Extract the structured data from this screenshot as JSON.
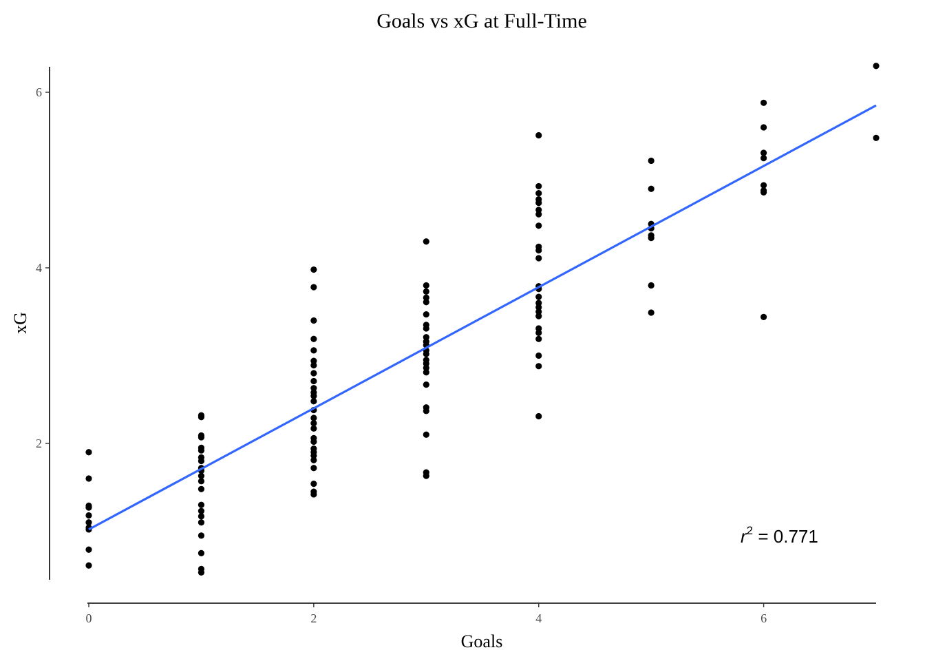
{
  "chart_data": {
    "type": "scatter",
    "title": "Goals vs xG at Full-Time",
    "xlabel": "Goals",
    "ylabel": "xG",
    "xlim": [
      -0.05,
      7
    ],
    "ylim": [
      0.5,
      6.3
    ],
    "x_ticks": [
      0,
      2,
      4,
      6
    ],
    "y_ticks": [
      2,
      4,
      6
    ],
    "grid": false,
    "annotation": {
      "prefix": "r",
      "superscript": "2",
      "suffix": " = 0.771"
    },
    "fit_line": {
      "color": "#3366ff",
      "x": [
        0,
        7
      ],
      "y": [
        1.02,
        5.85
      ]
    },
    "points": [
      {
        "x": 0,
        "y": 1.9
      },
      {
        "x": 0,
        "y": 1.6
      },
      {
        "x": 0,
        "y": 1.29
      },
      {
        "x": 0,
        "y": 1.27
      },
      {
        "x": 0,
        "y": 1.18
      },
      {
        "x": 0,
        "y": 1.1
      },
      {
        "x": 0,
        "y": 1.04
      },
      {
        "x": 0,
        "y": 1.02
      },
      {
        "x": 0,
        "y": 0.79
      },
      {
        "x": 0,
        "y": 0.61
      },
      {
        "x": 1,
        "y": 2.32
      },
      {
        "x": 1,
        "y": 2.3
      },
      {
        "x": 1,
        "y": 2.09
      },
      {
        "x": 1,
        "y": 2.07
      },
      {
        "x": 1,
        "y": 1.95
      },
      {
        "x": 1,
        "y": 1.92
      },
      {
        "x": 1,
        "y": 1.84
      },
      {
        "x": 1,
        "y": 1.8
      },
      {
        "x": 1,
        "y": 1.72
      },
      {
        "x": 1,
        "y": 1.69
      },
      {
        "x": 1,
        "y": 1.63
      },
      {
        "x": 1,
        "y": 1.57
      },
      {
        "x": 1,
        "y": 1.48
      },
      {
        "x": 1,
        "y": 1.3
      },
      {
        "x": 1,
        "y": 1.23
      },
      {
        "x": 1,
        "y": 1.17
      },
      {
        "x": 1,
        "y": 1.1
      },
      {
        "x": 1,
        "y": 0.95
      },
      {
        "x": 1,
        "y": 0.75
      },
      {
        "x": 1,
        "y": 0.57
      },
      {
        "x": 1,
        "y": 0.53
      },
      {
        "x": 2,
        "y": 3.98
      },
      {
        "x": 2,
        "y": 3.78
      },
      {
        "x": 2,
        "y": 3.4
      },
      {
        "x": 2,
        "y": 3.19
      },
      {
        "x": 2,
        "y": 3.06
      },
      {
        "x": 2,
        "y": 2.94
      },
      {
        "x": 2,
        "y": 2.89
      },
      {
        "x": 2,
        "y": 2.8
      },
      {
        "x": 2,
        "y": 2.71
      },
      {
        "x": 2,
        "y": 2.63
      },
      {
        "x": 2,
        "y": 2.58
      },
      {
        "x": 2,
        "y": 2.54
      },
      {
        "x": 2,
        "y": 2.48
      },
      {
        "x": 2,
        "y": 2.38
      },
      {
        "x": 2,
        "y": 2.29
      },
      {
        "x": 2,
        "y": 2.23
      },
      {
        "x": 2,
        "y": 2.17
      },
      {
        "x": 2,
        "y": 2.06
      },
      {
        "x": 2,
        "y": 2.02
      },
      {
        "x": 2,
        "y": 1.94
      },
      {
        "x": 2,
        "y": 1.9
      },
      {
        "x": 2,
        "y": 1.86
      },
      {
        "x": 2,
        "y": 1.81
      },
      {
        "x": 2,
        "y": 1.72
      },
      {
        "x": 2,
        "y": 1.54
      },
      {
        "x": 2,
        "y": 1.45
      },
      {
        "x": 2,
        "y": 1.42
      },
      {
        "x": 3,
        "y": 4.3
      },
      {
        "x": 3,
        "y": 3.8
      },
      {
        "x": 3,
        "y": 3.73
      },
      {
        "x": 3,
        "y": 3.66
      },
      {
        "x": 3,
        "y": 3.61
      },
      {
        "x": 3,
        "y": 3.47
      },
      {
        "x": 3,
        "y": 3.35
      },
      {
        "x": 3,
        "y": 3.31
      },
      {
        "x": 3,
        "y": 3.21
      },
      {
        "x": 3,
        "y": 3.16
      },
      {
        "x": 3,
        "y": 3.12
      },
      {
        "x": 3,
        "y": 3.06
      },
      {
        "x": 3,
        "y": 3.02
      },
      {
        "x": 3,
        "y": 2.95
      },
      {
        "x": 3,
        "y": 2.91
      },
      {
        "x": 3,
        "y": 2.86
      },
      {
        "x": 3,
        "y": 2.81
      },
      {
        "x": 3,
        "y": 2.67
      },
      {
        "x": 3,
        "y": 2.41
      },
      {
        "x": 3,
        "y": 2.37
      },
      {
        "x": 3,
        "y": 2.1
      },
      {
        "x": 3,
        "y": 1.67
      },
      {
        "x": 3,
        "y": 1.63
      },
      {
        "x": 4,
        "y": 5.51
      },
      {
        "x": 4,
        "y": 4.93
      },
      {
        "x": 4,
        "y": 4.85
      },
      {
        "x": 4,
        "y": 4.78
      },
      {
        "x": 4,
        "y": 4.74
      },
      {
        "x": 4,
        "y": 4.66
      },
      {
        "x": 4,
        "y": 4.61
      },
      {
        "x": 4,
        "y": 4.48
      },
      {
        "x": 4,
        "y": 4.24
      },
      {
        "x": 4,
        "y": 4.2
      },
      {
        "x": 4,
        "y": 4.11
      },
      {
        "x": 4,
        "y": 3.79
      },
      {
        "x": 4,
        "y": 3.76
      },
      {
        "x": 4,
        "y": 3.67
      },
      {
        "x": 4,
        "y": 3.6
      },
      {
        "x": 4,
        "y": 3.55
      },
      {
        "x": 4,
        "y": 3.5
      },
      {
        "x": 4,
        "y": 3.45
      },
      {
        "x": 4,
        "y": 3.31
      },
      {
        "x": 4,
        "y": 3.26
      },
      {
        "x": 4,
        "y": 3.19
      },
      {
        "x": 4,
        "y": 3.0
      },
      {
        "x": 4,
        "y": 2.88
      },
      {
        "x": 4,
        "y": 2.31
      },
      {
        "x": 5,
        "y": 5.22
      },
      {
        "x": 5,
        "y": 4.9
      },
      {
        "x": 5,
        "y": 4.5
      },
      {
        "x": 5,
        "y": 4.45
      },
      {
        "x": 5,
        "y": 4.37
      },
      {
        "x": 5,
        "y": 4.34
      },
      {
        "x": 5,
        "y": 3.8
      },
      {
        "x": 5,
        "y": 3.49
      },
      {
        "x": 6,
        "y": 5.88
      },
      {
        "x": 6,
        "y": 5.6
      },
      {
        "x": 6,
        "y": 5.31
      },
      {
        "x": 6,
        "y": 5.25
      },
      {
        "x": 6,
        "y": 4.94
      },
      {
        "x": 6,
        "y": 4.88
      },
      {
        "x": 6,
        "y": 4.86
      },
      {
        "x": 6,
        "y": 3.44
      },
      {
        "x": 7,
        "y": 6.3
      },
      {
        "x": 7,
        "y": 5.48
      }
    ]
  }
}
